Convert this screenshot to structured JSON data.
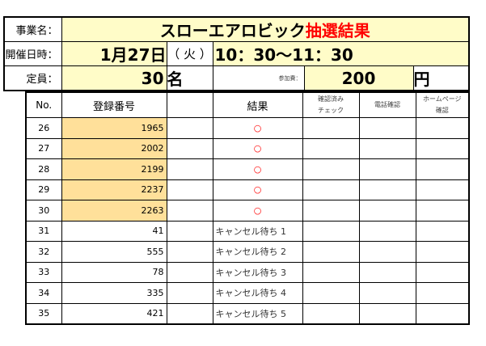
{
  "header": {
    "event_label": "事業名：",
    "event_title": "スローエアロビック",
    "event_result": "抽選結果",
    "date_label": "開催日時：",
    "date": "1月27日",
    "weekday": "（ 火 ）",
    "time": "10：30〜11：30",
    "capacity_label": "定員：",
    "capacity": "30",
    "capacity_unit": "名",
    "fee_label": "参加費：",
    "fee": "200",
    "fee_unit": "円"
  },
  "table": {
    "columns": [
      "No.",
      "登録番号",
      "",
      "結果",
      "確認済み\nチェック",
      "電話確認",
      "ホームページ\n確認"
    ],
    "rows": [
      {
        "no": "26",
        "reg": "1965",
        "result": "○"
      },
      {
        "no": "27",
        "reg": "2002",
        "result": "○"
      },
      {
        "no": "28",
        "reg": "2199",
        "result": "○"
      },
      {
        "no": "29",
        "reg": "2237",
        "result": "○"
      },
      {
        "no": "30",
        "reg": "2263",
        "result": "○"
      },
      {
        "no": "31",
        "reg": "41",
        "result": "キャンセル待ち 1"
      },
      {
        "no": "32",
        "reg": "555",
        "result": "キャンセル待ち 2"
      },
      {
        "no": "33",
        "reg": "78",
        "result": "キャンセル待ち 3"
      },
      {
        "no": "34",
        "reg": "335",
        "result": "キャンセル待ち 4"
      },
      {
        "no": "35",
        "reg": "421",
        "result": "キャンセル待ち 5"
      }
    ]
  },
  "colors": {
    "highlight": "#ffe09a",
    "header_fill": "#fffcc8",
    "accent": "#ff0000"
  }
}
